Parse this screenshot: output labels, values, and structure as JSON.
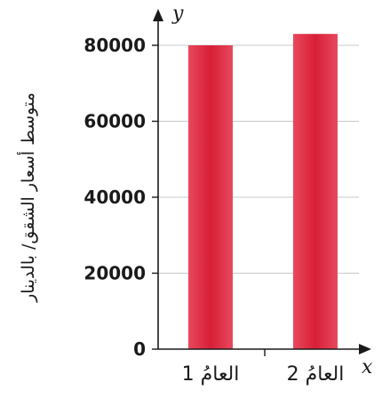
{
  "chart_data": {
    "type": "bar",
    "categories": [
      "العامُ 1",
      "العامُ 2"
    ],
    "values": [
      80000,
      83000
    ],
    "title": "",
    "xlabel": "x",
    "ylabel": "y",
    "ylabel_text": "متوسط أسعار الشقق/ بالدينار",
    "yticks": [
      "0",
      "20000",
      "40000",
      "60000",
      "80000"
    ],
    "ylim": [
      0,
      85000
    ],
    "grid": true,
    "bar_color": "#e0283c"
  }
}
